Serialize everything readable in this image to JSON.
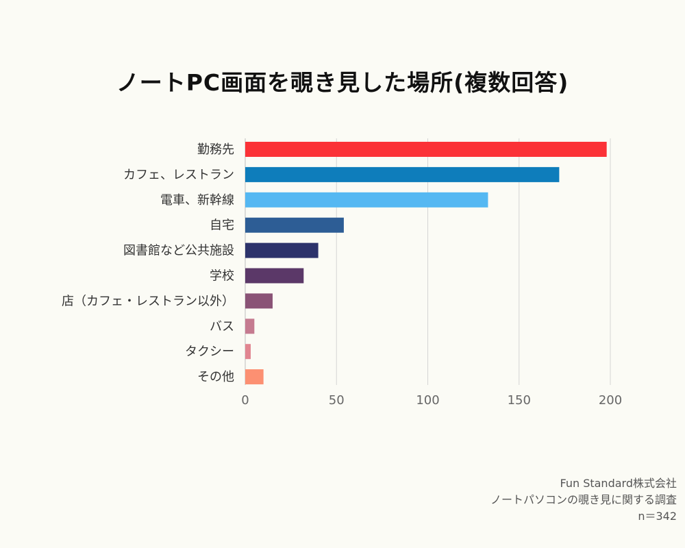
{
  "title": "ノートPC画面を覗き見した場所(複数回答)",
  "footer": {
    "company": "Fun Standard株式会社",
    "survey": "ノートパソコンの覗き見に関する調査",
    "sample": "n＝342"
  },
  "chart_data": {
    "type": "bar",
    "orientation": "horizontal",
    "title": "ノートPC画面を覗き見した場所(複数回答)",
    "categories": [
      "勤務先",
      "カフェ、レストラン",
      "電車、新幹線",
      "自宅",
      "図書館など公共施設",
      "学校",
      "店（カフェ・レストラン以外）",
      "バス",
      "タクシー",
      "その他"
    ],
    "values": [
      198,
      172,
      133,
      54,
      40,
      32,
      15,
      5,
      3,
      10
    ],
    "colors": [
      "#fb3237",
      "#0e7dbb",
      "#55b8f2",
      "#2d5d95",
      "#2d336b",
      "#5b3868",
      "#8a5376",
      "#c57b90",
      "#e18590",
      "#fc9072"
    ],
    "xlim": [
      0,
      200
    ],
    "xticks": [
      0,
      50,
      100,
      150,
      200
    ],
    "grid": true,
    "xlabel": "",
    "ylabel": ""
  }
}
